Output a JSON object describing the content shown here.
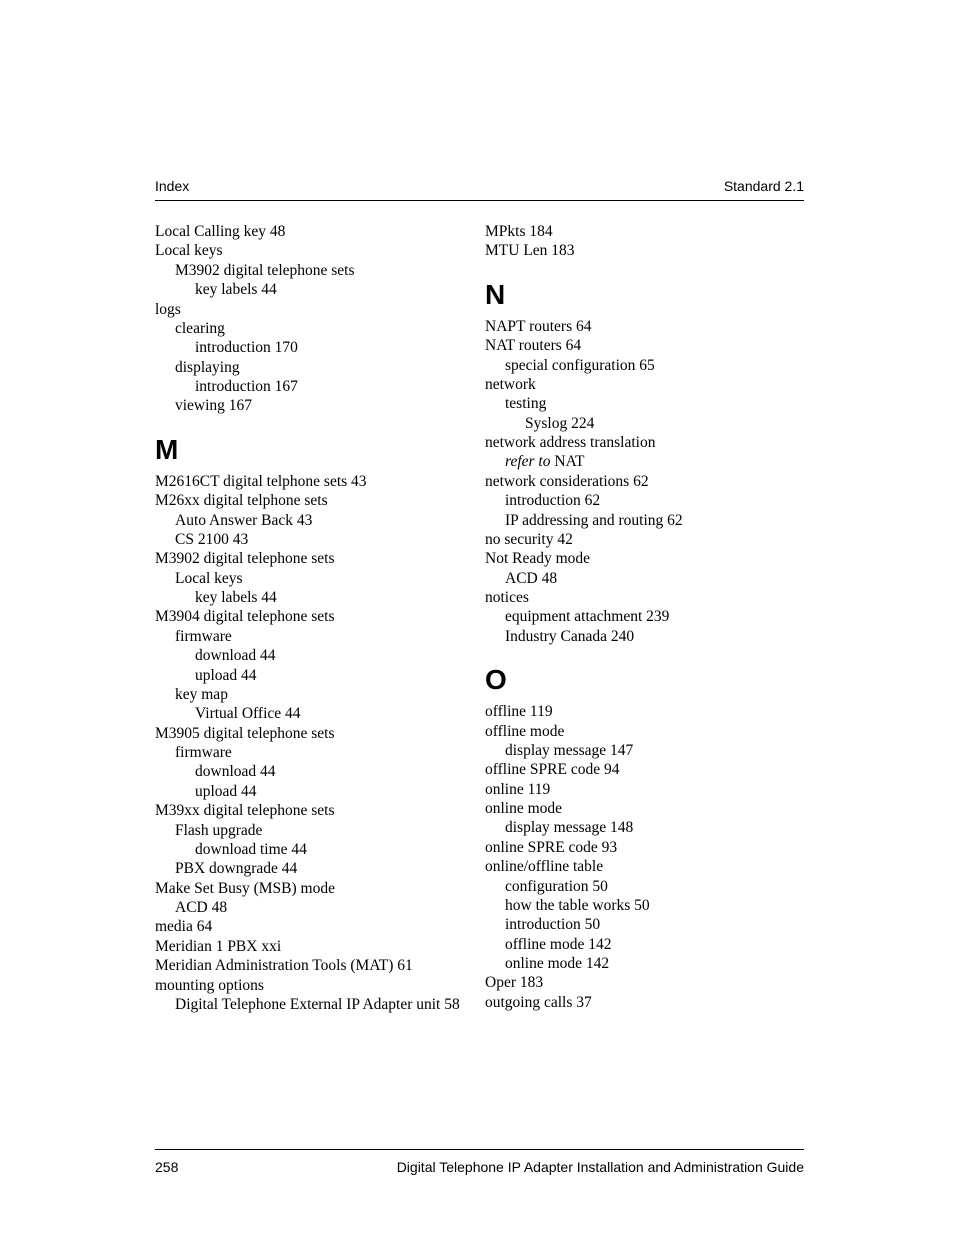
{
  "header": {
    "left": "Index",
    "right": "Standard 2.1"
  },
  "footer": {
    "page": "258",
    "title": "Digital Telephone IP Adapter Installation and Administration Guide"
  },
  "left_col": {
    "pre": [
      {
        "t": "Local Calling key 48",
        "lvl": 0
      },
      {
        "t": "Local keys",
        "lvl": 0
      },
      {
        "t": "M3902 digital telephone sets",
        "lvl": 1
      },
      {
        "t": "key labels 44",
        "lvl": 2
      },
      {
        "t": "logs",
        "lvl": 0
      },
      {
        "t": "clearing",
        "lvl": 1
      },
      {
        "t": "introduction 170",
        "lvl": 2
      },
      {
        "t": "displaying",
        "lvl": 1
      },
      {
        "t": "introduction 167",
        "lvl": 2
      },
      {
        "t": "viewing 167",
        "lvl": 1
      }
    ],
    "letter_M": "M",
    "m_entries": [
      {
        "t": "M2616CT digital telphone sets 43",
        "lvl": 0
      },
      {
        "t": "M26xx digital telphone sets",
        "lvl": 0
      },
      {
        "t": "Auto Answer Back 43",
        "lvl": 1
      },
      {
        "t": "CS 2100 43",
        "lvl": 1
      },
      {
        "t": "M3902 digital telephone sets",
        "lvl": 0
      },
      {
        "t": "Local keys",
        "lvl": 1
      },
      {
        "t": "key labels 44",
        "lvl": 2
      },
      {
        "t": "M3904 digital telephone sets",
        "lvl": 0
      },
      {
        "t": "firmware",
        "lvl": 1
      },
      {
        "t": "download 44",
        "lvl": 2
      },
      {
        "t": "upload 44",
        "lvl": 2
      },
      {
        "t": "key map",
        "lvl": 1
      },
      {
        "t": "Virtual Office 44",
        "lvl": 2
      },
      {
        "t": "M3905 digital telephone sets",
        "lvl": 0
      },
      {
        "t": "firmware",
        "lvl": 1
      },
      {
        "t": "download 44",
        "lvl": 2
      },
      {
        "t": "upload 44",
        "lvl": 2
      },
      {
        "t": "M39xx digital telephone sets",
        "lvl": 0
      },
      {
        "t": "Flash upgrade",
        "lvl": 1
      },
      {
        "t": "download time 44",
        "lvl": 2
      },
      {
        "t": "PBX downgrade 44",
        "lvl": 1
      },
      {
        "t": "Make Set Busy (MSB) mode",
        "lvl": 0
      },
      {
        "t": "ACD 48",
        "lvl": 1
      },
      {
        "t": "media 64",
        "lvl": 0
      },
      {
        "t": "Meridian 1 PBX xxi",
        "lvl": 0
      },
      {
        "t": "Meridian Administration Tools (MAT) 61",
        "lvl": 0
      },
      {
        "t": "mounting options",
        "lvl": 0
      },
      {
        "t": "Digital Telephone External IP Adapter unit 58",
        "lvl": 1
      }
    ]
  },
  "right_col": {
    "pre": [
      {
        "t": "MPkts 184",
        "lvl": 0
      },
      {
        "t": "MTU Len 183",
        "lvl": 0
      }
    ],
    "letter_N": "N",
    "n_entries": [
      {
        "t": "NAPT routers 64",
        "lvl": 0
      },
      {
        "t": "NAT routers 64",
        "lvl": 0
      },
      {
        "t": "special configuration 65",
        "lvl": 1
      },
      {
        "t": "network",
        "lvl": 0
      },
      {
        "t": "testing",
        "lvl": 1
      },
      {
        "t": "Syslog 224",
        "lvl": 2
      },
      {
        "t": "network address translation",
        "lvl": 0
      },
      {
        "pre_italic": "refer to",
        "post": " NAT",
        "lvl": 1
      },
      {
        "t": "network considerations 62",
        "lvl": 0
      },
      {
        "t": "introduction 62",
        "lvl": 1
      },
      {
        "t": "IP addressing and routing 62",
        "lvl": 1
      },
      {
        "t": "no security 42",
        "lvl": 0
      },
      {
        "t": "Not Ready mode",
        "lvl": 0
      },
      {
        "t": "ACD 48",
        "lvl": 1
      },
      {
        "t": "notices",
        "lvl": 0
      },
      {
        "t": "equipment attachment 239",
        "lvl": 1
      },
      {
        "t": "Industry Canada 240",
        "lvl": 1
      }
    ],
    "letter_O": "O",
    "o_entries": [
      {
        "t": "offline 119",
        "lvl": 0
      },
      {
        "t": "offline mode",
        "lvl": 0
      },
      {
        "t": "display message 147",
        "lvl": 1
      },
      {
        "t": "offline SPRE code 94",
        "lvl": 0
      },
      {
        "t": "online 119",
        "lvl": 0
      },
      {
        "t": "online mode",
        "lvl": 0
      },
      {
        "t": "display message 148",
        "lvl": 1
      },
      {
        "t": "online SPRE code 93",
        "lvl": 0
      },
      {
        "t": "online/offline table",
        "lvl": 0
      },
      {
        "t": "configuration 50",
        "lvl": 1
      },
      {
        "t": "how the table works 50",
        "lvl": 1
      },
      {
        "t": "introduction 50",
        "lvl": 1
      },
      {
        "t": "offline mode 142",
        "lvl": 1
      },
      {
        "t": "online mode 142",
        "lvl": 1
      },
      {
        "t": "Oper 183",
        "lvl": 0
      },
      {
        "t": "outgoing calls 37",
        "lvl": 0
      }
    ]
  }
}
